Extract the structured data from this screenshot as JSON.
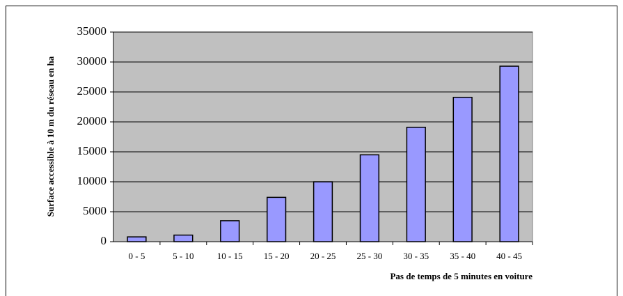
{
  "chart_data": {
    "type": "bar",
    "x_label": "Pas de temps de 5 minutes en voiture",
    "y_label": "Surface accessible à 10 m du réseau en ha",
    "categories": [
      "0 - 5",
      "5 - 10",
      "10 - 15",
      "15 - 20",
      "20 - 25",
      "25 - 30",
      "30 - 35",
      "35 - 40",
      "40 - 45"
    ],
    "values": [
      800,
      1100,
      3500,
      7400,
      10000,
      14500,
      19100,
      24100,
      29300
    ],
    "color": "#9999ff",
    "ylim": [
      0,
      35000
    ],
    "yticks": [
      0,
      5000,
      10000,
      15000,
      20000,
      25000,
      30000,
      35000
    ],
    "grid": true
  }
}
